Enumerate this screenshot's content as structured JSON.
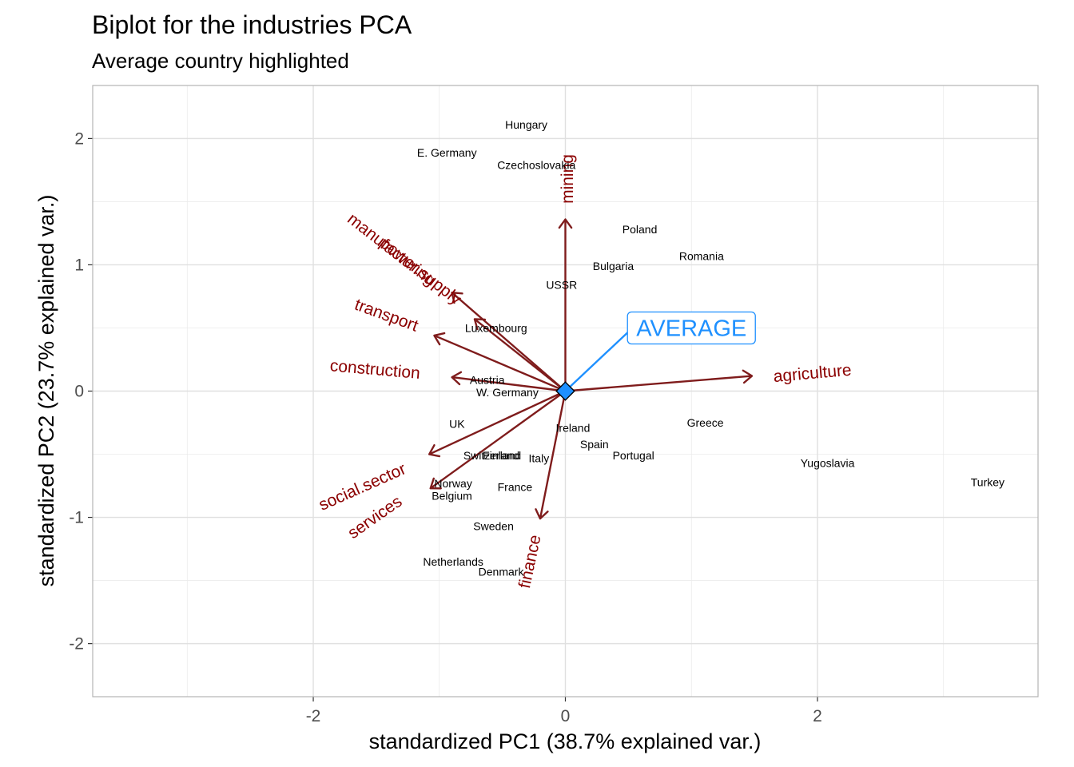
{
  "chart_data": {
    "type": "scatter",
    "title": "Biplot for the industries PCA",
    "subtitle": "Average country highlighted",
    "xlabel": "standardized PC1 (38.7% explained var.)",
    "ylabel": "standardized PC2 (23.7% explained var.)",
    "xlim": [
      -3.75,
      3.75
    ],
    "ylim": [
      -2.42,
      2.42
    ],
    "x_ticks": [
      -2,
      0,
      2
    ],
    "x_tick_labels": [
      "-2",
      "0",
      "2"
    ],
    "y_ticks": [
      -2,
      -1,
      0,
      1,
      2
    ],
    "y_tick_labels": [
      "-2",
      "-1",
      "0",
      "1",
      "2"
    ],
    "grid": true,
    "points": [
      {
        "label": "Hungary",
        "x": -0.31,
        "y": 2.11
      },
      {
        "label": "E. Germany",
        "x": -0.94,
        "y": 1.89
      },
      {
        "label": "Czechoslovakia",
        "x": -0.23,
        "y": 1.79
      },
      {
        "label": "Poland",
        "x": 0.59,
        "y": 1.28
      },
      {
        "label": "Romania",
        "x": 1.08,
        "y": 1.07
      },
      {
        "label": "Bulgaria",
        "x": 0.38,
        "y": 0.99
      },
      {
        "label": "USSR",
        "x": -0.03,
        "y": 0.84
      },
      {
        "label": "Luxembourg",
        "x": -0.55,
        "y": 0.5
      },
      {
        "label": "Austria",
        "x": -0.62,
        "y": 0.09
      },
      {
        "label": "W. Germany",
        "x": -0.46,
        "y": -0.01
      },
      {
        "label": "UK",
        "x": -0.86,
        "y": -0.26
      },
      {
        "label": "Ireland",
        "x": 0.06,
        "y": -0.29
      },
      {
        "label": "Greece",
        "x": 1.11,
        "y": -0.25
      },
      {
        "label": "Spain",
        "x": 0.23,
        "y": -0.42
      },
      {
        "label": "Switzerland",
        "x": -0.58,
        "y": -0.51
      },
      {
        "label": "Finland",
        "x": -0.51,
        "y": -0.51
      },
      {
        "label": "Italy",
        "x": -0.21,
        "y": -0.53
      },
      {
        "label": "Portugal",
        "x": 0.54,
        "y": -0.51
      },
      {
        "label": "Yugoslavia",
        "x": 2.08,
        "y": -0.57
      },
      {
        "label": "Turkey",
        "x": 3.35,
        "y": -0.72
      },
      {
        "label": "Norway",
        "x": -0.89,
        "y": -0.73
      },
      {
        "label": "France",
        "x": -0.4,
        "y": -0.76
      },
      {
        "label": "Belgium",
        "x": -0.9,
        "y": -0.83
      },
      {
        "label": "Sweden",
        "x": -0.57,
        "y": -1.07
      },
      {
        "label": "Netherlands",
        "x": -0.89,
        "y": -1.35
      },
      {
        "label": "Denmark",
        "x": -0.51,
        "y": -1.43
      }
    ],
    "loadings": [
      {
        "name": "mining",
        "x": 0.0,
        "y": 1.36,
        "label_x": 0.02,
        "label_y": 1.68,
        "angle": -90
      },
      {
        "name": "manufacturing",
        "x": -0.9,
        "y": 0.78,
        "label_x": -1.38,
        "label_y": 1.12,
        "angle": 38
      },
      {
        "name": "power.supply",
        "x": -0.72,
        "y": 0.57,
        "label_x": -1.15,
        "label_y": 0.95,
        "angle": 38
      },
      {
        "name": "transport",
        "x": -1.04,
        "y": 0.44,
        "label_x": -1.42,
        "label_y": 0.6,
        "angle": 20
      },
      {
        "name": "construction",
        "x": -0.9,
        "y": 0.11,
        "label_x": -1.51,
        "label_y": 0.17,
        "angle": 5
      },
      {
        "name": "agriculture",
        "x": 1.48,
        "y": 0.12,
        "label_x": 1.96,
        "label_y": 0.14,
        "angle": -5
      },
      {
        "name": "social.sector",
        "x": -1.08,
        "y": -0.5,
        "label_x": -1.61,
        "label_y": -0.76,
        "angle": -24
      },
      {
        "name": "services",
        "x": -1.07,
        "y": -0.77,
        "label_x": -1.51,
        "label_y": -1.0,
        "angle": -35
      },
      {
        "name": "finance",
        "x": -0.2,
        "y": -1.01,
        "label_x": -0.28,
        "label_y": -1.35,
        "angle": -78
      }
    ],
    "highlight": {
      "label": "AVERAGE",
      "x": 0,
      "y": 0,
      "label_x": 1.0,
      "label_y": 0.5
    },
    "colors": {
      "loading": "#7f1c1c",
      "loading_label": "#8b0000",
      "highlight": "#1e90ff",
      "grid": "#ebebeb",
      "panel_border": "#b3b3b3",
      "point_label": "#000000",
      "tick_label": "#4d4d4d"
    }
  }
}
